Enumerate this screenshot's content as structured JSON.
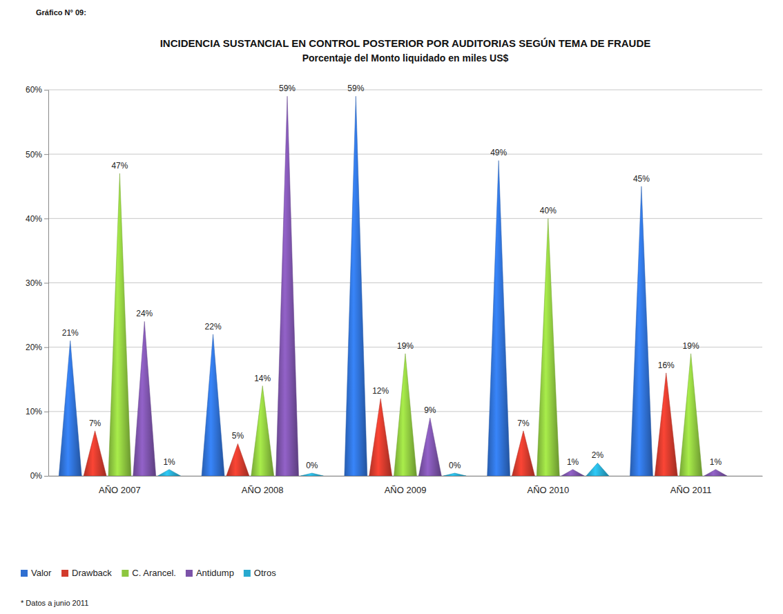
{
  "chart_data": {
    "type": "bar",
    "title": "INCIDENCIA SUSTANCIAL EN CONTROL POSTERIOR POR AUDITORIAS SEGÚN TEMA DE FRAUDE",
    "subtitle": "Porcentaje del Monto liquidado en miles US$",
    "annotations": [
      "Gráfico N° 09:",
      "* Datos a junio 2011"
    ],
    "categories": [
      "AÑO 2007",
      "AÑO 2008",
      "AÑO 2009",
      "AÑO 2010",
      "AÑO 2011"
    ],
    "series": [
      {
        "name": "Valor",
        "color": "#2f6fd1",
        "values": [
          21,
          22,
          59,
          49,
          45
        ],
        "value_labels": [
          "21%",
          "22%",
          "59%",
          "49%",
          "45%"
        ]
      },
      {
        "name": "Drawback",
        "color": "#d23a2c",
        "values": [
          7,
          5,
          12,
          7,
          16
        ],
        "value_labels": [
          "7%",
          "5%",
          "12%",
          "7%",
          "16%"
        ]
      },
      {
        "name": "C. Arancel.",
        "color": "#8dc63f",
        "values": [
          47,
          14,
          19,
          40,
          19
        ],
        "value_labels": [
          "47%",
          "14%",
          "19%",
          "40%",
          "19%"
        ]
      },
      {
        "name": "Antidump",
        "color": "#7b52a8",
        "values": [
          24,
          59,
          9,
          1,
          1
        ],
        "value_labels": [
          "24%",
          "59%",
          "9%",
          "1%",
          "1%"
        ]
      },
      {
        "name": "Otros",
        "color": "#27a9cf",
        "values": [
          1,
          0,
          0,
          2,
          null
        ],
        "value_labels": [
          "1%",
          "0%",
          "0%",
          "2%",
          null
        ]
      }
    ],
    "ylim": [
      0,
      60
    ],
    "yticks": [
      {
        "value": 0,
        "label": "0%"
      },
      {
        "value": 10,
        "label": "10%"
      },
      {
        "value": 20,
        "label": "20%"
      },
      {
        "value": 30,
        "label": "30%"
      },
      {
        "value": 40,
        "label": "40%"
      },
      {
        "value": 50,
        "label": "50%"
      },
      {
        "value": 60,
        "label": "60%"
      }
    ],
    "grid": true,
    "data_labels": true,
    "legend": "bottom-left"
  }
}
